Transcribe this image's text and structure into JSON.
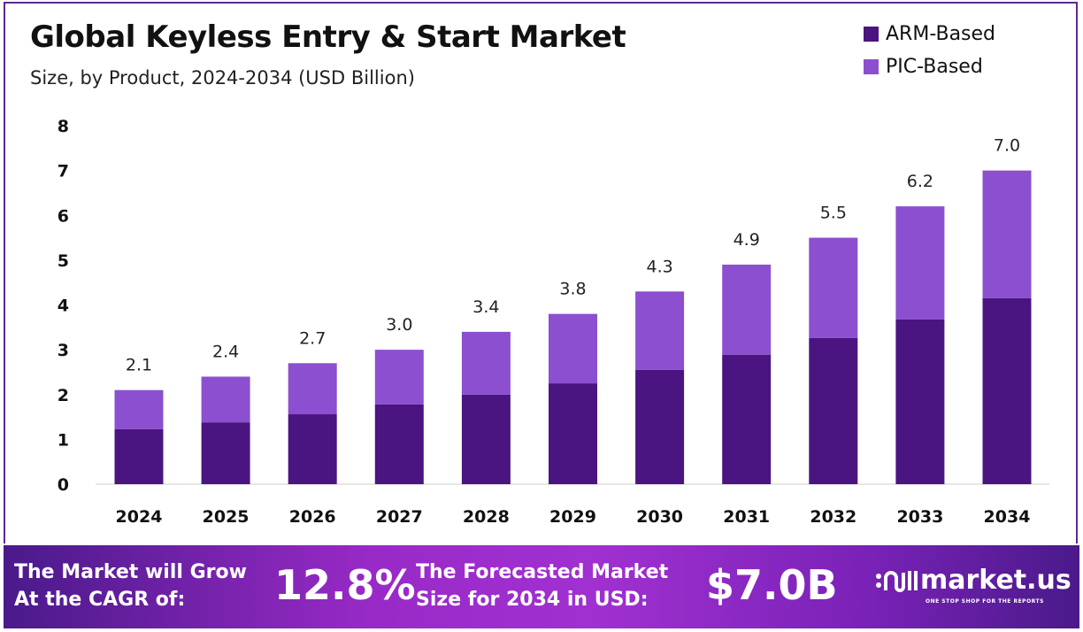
{
  "chart_data": {
    "type": "bar",
    "stacked": true,
    "title": "Global Keyless Entry & Start Market",
    "subtitle": "Size, by Product, 2024-2034 (USD Billion)",
    "categories": [
      "2024",
      "2025",
      "2026",
      "2027",
      "2028",
      "2029",
      "2030",
      "2031",
      "2032",
      "2033",
      "2034"
    ],
    "series": [
      {
        "name": "ARM-Based",
        "color": "#4a1580",
        "values": [
          1.23,
          1.38,
          1.56,
          1.78,
          2.0,
          2.25,
          2.55,
          2.89,
          3.26,
          3.68,
          4.15
        ]
      },
      {
        "name": "PIC-Based",
        "color": "#8b4fd0",
        "values": [
          0.87,
          1.02,
          1.14,
          1.22,
          1.4,
          1.55,
          1.75,
          2.01,
          2.24,
          2.52,
          2.85
        ]
      }
    ],
    "totals": [
      "2.1",
      "2.4",
      "2.7",
      "3.0",
      "3.4",
      "3.8",
      "4.3",
      "4.9",
      "5.5",
      "6.2",
      "7.0"
    ],
    "yticks": [
      "0",
      "1",
      "2",
      "3",
      "4",
      "5",
      "6",
      "7",
      "8"
    ],
    "ylim": [
      0,
      8
    ],
    "grid": false,
    "legend": "top-right"
  },
  "footer": {
    "cagr_label_1": "The Market will Grow",
    "cagr_label_2": "At the CAGR of:",
    "cagr_value": "12.8%",
    "forecast_label_1": "The Forecasted Market",
    "forecast_label_2": "Size for 2034 in USD:",
    "forecast_value": "$7.0B",
    "logo_text": "market.us",
    "logo_tagline": "ONE STOP SHOP FOR THE REPORTS"
  }
}
